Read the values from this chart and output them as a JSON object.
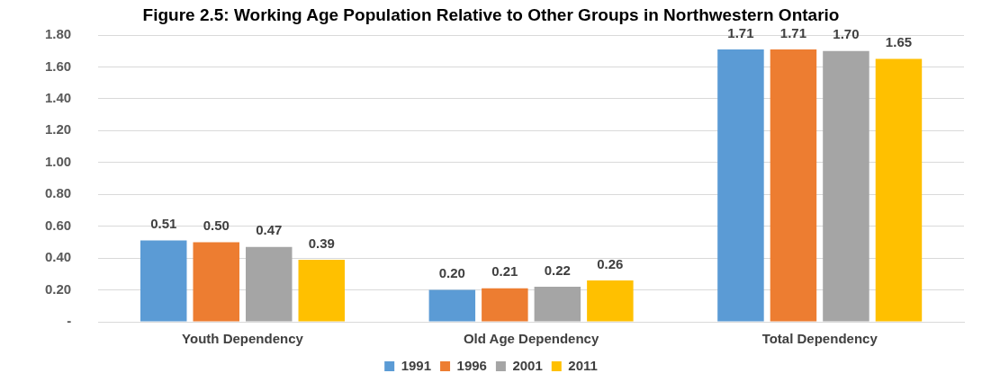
{
  "chart_data": {
    "type": "bar",
    "title": "Figure 2.5: Working Age Population Relative to Other Groups in Northwestern Ontario",
    "categories": [
      "Youth Dependency",
      "Old Age Dependency",
      "Total Dependency"
    ],
    "series": [
      {
        "name": "1991",
        "color": "#5b9bd5",
        "values": [
          0.51,
          0.2,
          1.71
        ],
        "value_labels": [
          "0.51",
          "0.20",
          "1.71"
        ]
      },
      {
        "name": "1996",
        "color": "#ed7d31",
        "values": [
          0.5,
          0.21,
          1.71
        ],
        "value_labels": [
          "0.50",
          "0.21",
          "1.71"
        ]
      },
      {
        "name": "2001",
        "color": "#a5a5a5",
        "values": [
          0.47,
          0.22,
          1.7
        ],
        "value_labels": [
          "0.47",
          "0.22",
          "1.70"
        ]
      },
      {
        "name": "2011",
        "color": "#ffc000",
        "values": [
          0.39,
          0.26,
          1.65
        ],
        "value_labels": [
          "0.39",
          "0.26",
          "1.65"
        ]
      }
    ],
    "ylim": [
      0,
      1.8
    ],
    "yticks": [
      {
        "value": 0,
        "label": "-"
      },
      {
        "value": 0.2,
        "label": "0.20"
      },
      {
        "value": 0.4,
        "label": "0.40"
      },
      {
        "value": 0.6,
        "label": "0.60"
      },
      {
        "value": 0.8,
        "label": "0.80"
      },
      {
        "value": 1,
        "label": "1.00"
      },
      {
        "value": 1.2,
        "label": "1.20"
      },
      {
        "value": 1.4,
        "label": "1.40"
      },
      {
        "value": 1.6,
        "label": "1.60"
      },
      {
        "value": 1.8,
        "label": "1.80"
      }
    ],
    "grid": "y",
    "legend": "bottom"
  }
}
